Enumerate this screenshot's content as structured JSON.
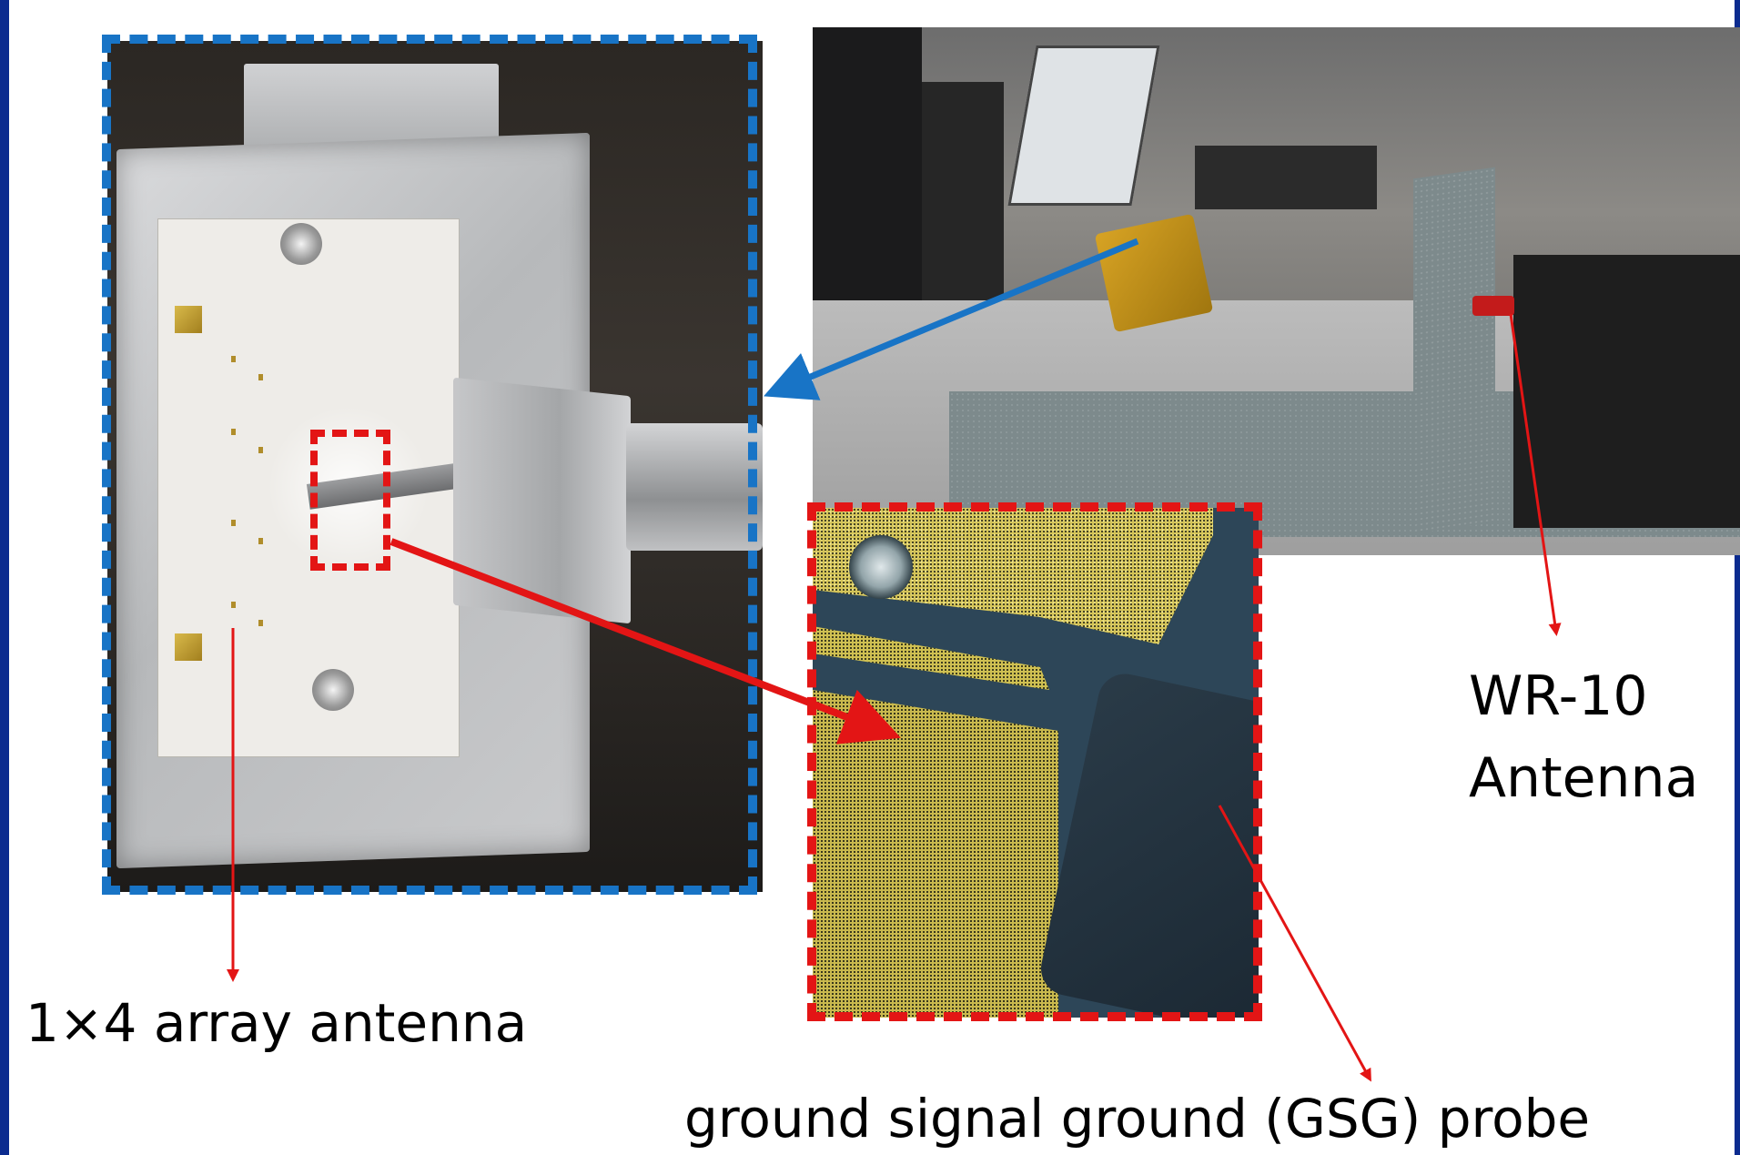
{
  "figure": {
    "labels": {
      "array_antenna": "1×4 array antenna",
      "wr10_line1": "WR-10",
      "wr10_line2": "Antenna",
      "gsg_probe": "ground signal ground (GSG) probe"
    },
    "colors": {
      "frame": "#0b2b8f",
      "blue_highlight": "#1874c6",
      "red_highlight": "#e31515",
      "annotation_arrow": "#e31515"
    }
  }
}
